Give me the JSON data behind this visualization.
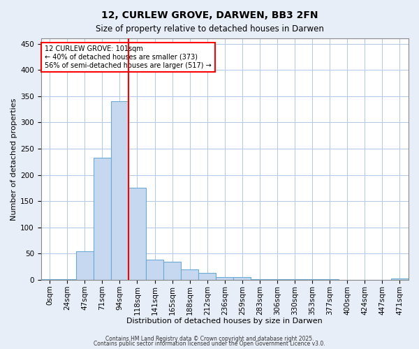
{
  "title": "12, CURLEW GROVE, DARWEN, BB3 2FN",
  "subtitle": "Size of property relative to detached houses in Darwen",
  "xlabel": "Distribution of detached houses by size in Darwen",
  "ylabel": "Number of detached properties",
  "bar_labels": [
    "0sqm",
    "24sqm",
    "47sqm",
    "71sqm",
    "94sqm",
    "118sqm",
    "141sqm",
    "165sqm",
    "188sqm",
    "212sqm",
    "236sqm",
    "259sqm",
    "283sqm",
    "306sqm",
    "330sqm",
    "353sqm",
    "377sqm",
    "400sqm",
    "424sqm",
    "447sqm",
    "471sqm"
  ],
  "bar_values": [
    2,
    2,
    55,
    233,
    340,
    175,
    38,
    35,
    20,
    13,
    5,
    6,
    1,
    2,
    1,
    1,
    1,
    0,
    0,
    0,
    3
  ],
  "bar_color": "#c5d8f0",
  "bar_edge_color": "#6aaad4",
  "red_line_x": 4.5,
  "annotation_title": "12 CURLEW GROVE: 101sqm",
  "annotation_line1": "← 40% of detached houses are smaller (373)",
  "annotation_line2": "56% of semi-detached houses are larger (517) →",
  "annotation_box_color": "white",
  "annotation_box_edge_color": "red",
  "ylim": [
    0,
    460
  ],
  "yticks": [
    0,
    50,
    100,
    150,
    200,
    250,
    300,
    350,
    400,
    450
  ],
  "footnote1": "Contains HM Land Registry data © Crown copyright and database right 2025.",
  "footnote2": "Contains public sector information licensed under the Open Government Licence v3.0.",
  "background_color": "#e8eef8",
  "plot_background": "white",
  "grid_color": "#b0c8e8"
}
